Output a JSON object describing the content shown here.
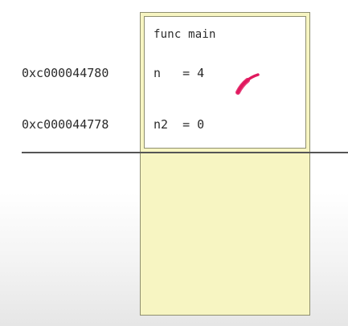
{
  "frame": {
    "title": "func main",
    "rows": [
      {
        "address": "0xc000044780",
        "variable": "n   = 4"
      },
      {
        "address": "0xc000044778",
        "variable": "n2  = 0"
      }
    ]
  },
  "colors": {
    "stack_fill": "#f7f5c2",
    "frame_fill": "#ffffff",
    "border": "#8f8f70",
    "pen_mark": "#e0195e"
  }
}
